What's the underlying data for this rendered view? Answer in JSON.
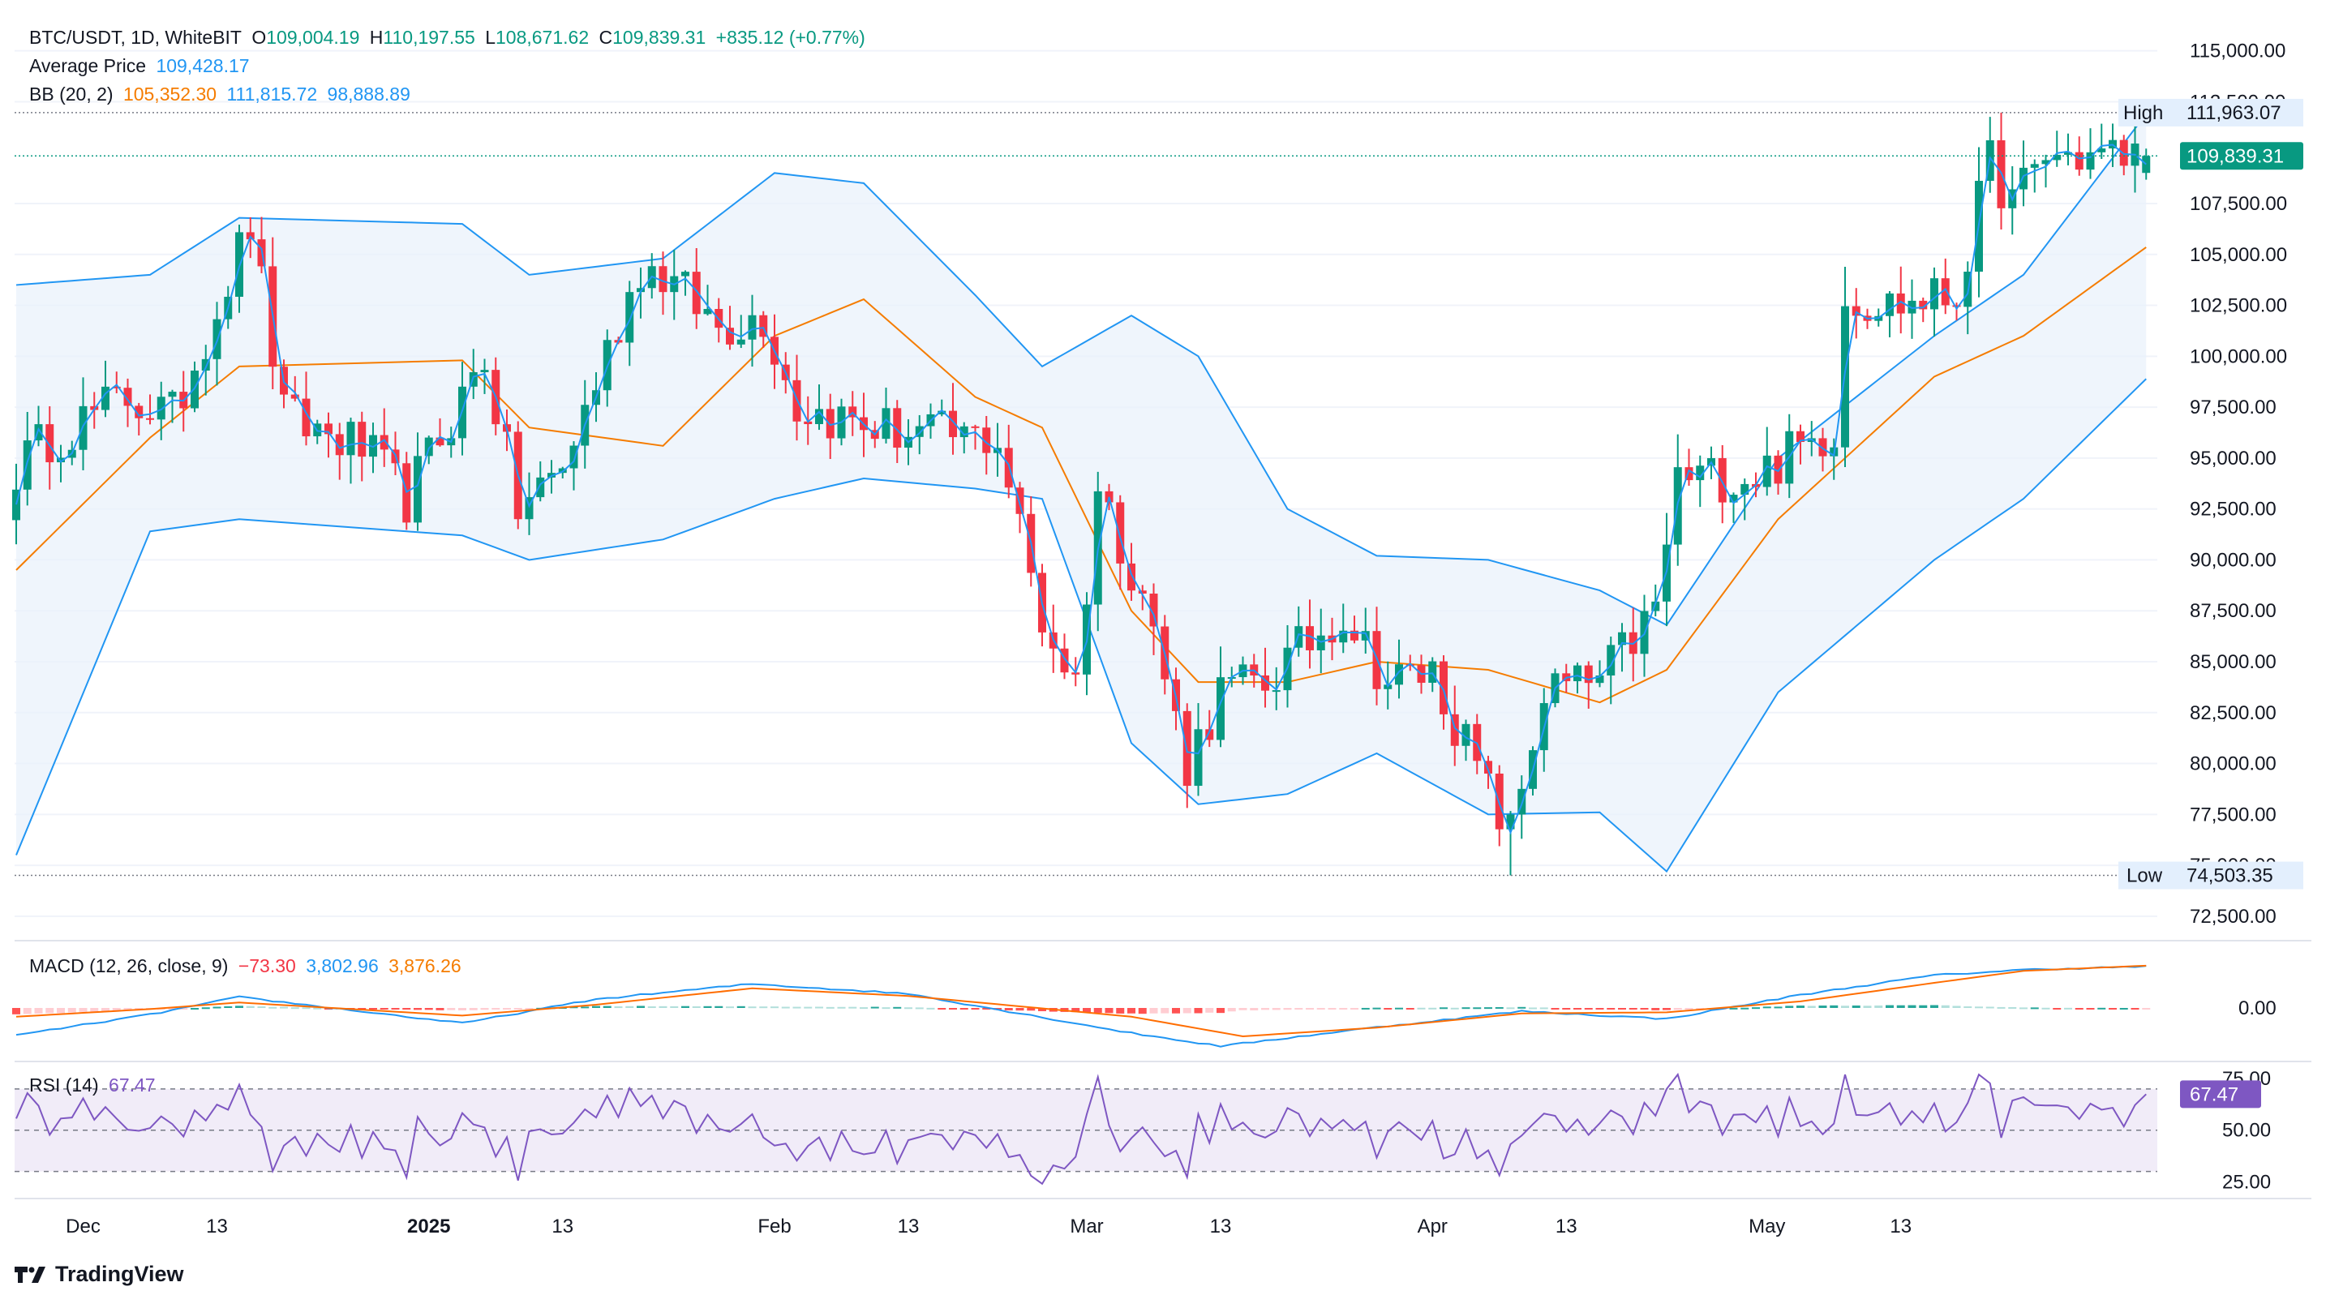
{
  "header": {
    "symbol": "BTC/USDT, 1D, WhiteBIT",
    "open_label": "O",
    "open": "109,004.19",
    "high_label": "H",
    "high": "110,197.55",
    "low_label": "L",
    "low": "108,671.62",
    "close_label": "C",
    "close": "109,839.31",
    "change": "+835.12 (+0.77%)",
    "avg_label": "Average Price",
    "avg": "109,428.17",
    "bb_label": "BB (20, 2)",
    "bb_basis": "105,352.30",
    "bb_upper": "111,815.72",
    "bb_lower": "98,888.89",
    "macd_label": "MACD (12, 26, close, 9)",
    "macd_hist": "−73.30",
    "macd": "3,802.96",
    "macd_signal": "3,876.26",
    "rsi_label": "RSI (14)",
    "rsi": "67.47"
  },
  "brand": "TradingView",
  "colors": {
    "up": "#089981",
    "down": "#f23645",
    "bb_line": "#2196f3",
    "bb_basis": "#f57c00",
    "bb_fill": "#e9f2fb",
    "macd_line": "#2196f3",
    "signal_line": "#ff6d00",
    "rsi_line": "#7e57c2",
    "rsi_band": "#ede7f6",
    "grid": "#f0f3fa",
    "axis_text": "#131722"
  },
  "chart_data": [
    {
      "type": "candlestick",
      "title": "BTC/USDT, 1D, WhiteBIT",
      "price_axis": [
        "115,000.00",
        "112,500.00",
        "107,500.00",
        "105,000.00",
        "102,500.00",
        "100,000.00",
        "97,500.00",
        "95,000.00",
        "92,500.00",
        "90,000.00",
        "87,500.00",
        "85,000.00",
        "82,500.00",
        "80,000.00",
        "77,500.00",
        "75,000.00",
        "72,500.00"
      ],
      "ylim": [
        71300,
        116500
      ],
      "x_labels": [
        "Dec",
        "13",
        "2025",
        "13",
        "Feb",
        "13",
        "Mar",
        "13",
        "Apr",
        "13",
        "May",
        "13"
      ],
      "date_range": [
        "2024-11-25",
        "2025-05-26"
      ],
      "high_marker": {
        "label": "High",
        "value": "111,963.07"
      },
      "low_marker": {
        "label": "Low",
        "value": "74,503.35"
      },
      "last_price": "109,839.31",
      "keyframes_close": [
        {
          "date": "2024-11-25",
          "close": 94500
        },
        {
          "date": "2024-11-28",
          "close": 96000
        },
        {
          "date": "2024-12-05",
          "close": 98000
        },
        {
          "date": "2024-12-09",
          "close": 97000
        },
        {
          "date": "2024-12-16",
          "close": 106500
        },
        {
          "date": "2024-12-19",
          "close": 97000
        },
        {
          "date": "2024-12-26",
          "close": 95500
        },
        {
          "date": "2024-12-30",
          "close": 93000
        },
        {
          "date": "2025-01-06",
          "close": 100000
        },
        {
          "date": "2025-01-09",
          "close": 92500
        },
        {
          "date": "2025-01-13",
          "close": 94500
        },
        {
          "date": "2025-01-20",
          "close": 104500
        },
        {
          "date": "2025-01-22",
          "close": 104000
        },
        {
          "date": "2025-01-27",
          "close": 101500
        },
        {
          "date": "2025-01-31",
          "close": 102000
        },
        {
          "date": "2025-02-03",
          "close": 97500
        },
        {
          "date": "2025-02-10",
          "close": 96500
        },
        {
          "date": "2025-02-17",
          "close": 96000
        },
        {
          "date": "2025-02-21",
          "close": 96000
        },
        {
          "date": "2025-02-25",
          "close": 87000
        },
        {
          "date": "2025-02-28",
          "close": 84000
        },
        {
          "date": "2025-03-02",
          "close": 93500
        },
        {
          "date": "2025-03-06",
          "close": 88500
        },
        {
          "date": "2025-03-10",
          "close": 80000
        },
        {
          "date": "2025-03-13",
          "close": 83500
        },
        {
          "date": "2025-03-17",
          "close": 84000
        },
        {
          "date": "2025-03-24",
          "close": 87500
        },
        {
          "date": "2025-03-28",
          "close": 84000
        },
        {
          "date": "2025-04-01",
          "close": 84500
        },
        {
          "date": "2025-04-06",
          "close": 78500
        },
        {
          "date": "2025-04-08",
          "close": 76500
        },
        {
          "date": "2025-04-11",
          "close": 83500
        },
        {
          "date": "2025-04-16",
          "close": 84000
        },
        {
          "date": "2025-04-21",
          "close": 87500
        },
        {
          "date": "2025-04-23",
          "close": 94000
        },
        {
          "date": "2025-04-30",
          "close": 94200
        },
        {
          "date": "2025-05-07",
          "close": 96500
        },
        {
          "date": "2025-05-08",
          "close": 103000
        },
        {
          "date": "2025-05-12",
          "close": 102500
        },
        {
          "date": "2025-05-18",
          "close": 103000
        },
        {
          "date": "2025-05-21",
          "close": 109500
        },
        {
          "date": "2025-05-23",
          "close": 107500
        },
        {
          "date": "2025-05-26",
          "close": 109839.31
        }
      ],
      "bollinger": {
        "upper": [
          [
            0,
            103500
          ],
          [
            12,
            104000
          ],
          [
            20,
            106800
          ],
          [
            40,
            106500
          ],
          [
            46,
            104000
          ],
          [
            58,
            104800
          ],
          [
            68,
            109000
          ],
          [
            76,
            108500
          ],
          [
            86,
            103000
          ],
          [
            92,
            99500
          ],
          [
            100,
            102000
          ],
          [
            106,
            100000
          ],
          [
            114,
            92500
          ],
          [
            122,
            90200
          ],
          [
            132,
            90000
          ],
          [
            142,
            88500
          ],
          [
            148,
            86800
          ],
          [
            158,
            95000
          ],
          [
            172,
            101000
          ],
          [
            180,
            104000
          ],
          [
            191,
            111900
          ]
        ],
        "basis": [
          [
            0,
            89500
          ],
          [
            12,
            96000
          ],
          [
            20,
            99500
          ],
          [
            40,
            99800
          ],
          [
            46,
            96500
          ],
          [
            58,
            95600
          ],
          [
            68,
            101000
          ],
          [
            76,
            102800
          ],
          [
            86,
            98000
          ],
          [
            92,
            96500
          ],
          [
            100,
            87500
          ],
          [
            106,
            84000
          ],
          [
            114,
            84000
          ],
          [
            122,
            85000
          ],
          [
            132,
            84600
          ],
          [
            142,
            83000
          ],
          [
            148,
            84600
          ],
          [
            158,
            92000
          ],
          [
            172,
            99000
          ],
          [
            180,
            101000
          ],
          [
            191,
            105352.3
          ]
        ],
        "lower": [
          [
            0,
            75500
          ],
          [
            12,
            91400
          ],
          [
            20,
            92000
          ],
          [
            40,
            91200
          ],
          [
            46,
            90000
          ],
          [
            58,
            91000
          ],
          [
            68,
            93000
          ],
          [
            76,
            94000
          ],
          [
            86,
            93500
          ],
          [
            92,
            93000
          ],
          [
            100,
            81000
          ],
          [
            106,
            78000
          ],
          [
            114,
            78500
          ],
          [
            122,
            80500
          ],
          [
            132,
            77500
          ],
          [
            142,
            77600
          ],
          [
            148,
            74700
          ],
          [
            158,
            83500
          ],
          [
            172,
            90000
          ],
          [
            180,
            93000
          ],
          [
            191,
            98888.89
          ]
        ]
      }
    },
    {
      "type": "line",
      "title": "MACD (12, 26, close, 9)",
      "y_axis": [
        "0.00"
      ],
      "ylim": [
        -5200,
        5200
      ],
      "macd_keyframes": [
        [
          0,
          -2500
        ],
        [
          12,
          -600
        ],
        [
          20,
          1000
        ],
        [
          40,
          -1400
        ],
        [
          52,
          800
        ],
        [
          66,
          2200
        ],
        [
          80,
          1300
        ],
        [
          100,
          -2300
        ],
        [
          108,
          -3500
        ],
        [
          120,
          -2000
        ],
        [
          135,
          -300
        ],
        [
          148,
          -1000
        ],
        [
          160,
          1200
        ],
        [
          172,
          3000
        ],
        [
          180,
          3500
        ],
        [
          191,
          3802.96
        ]
      ],
      "signal_keyframes": [
        [
          0,
          -800
        ],
        [
          12,
          -100
        ],
        [
          20,
          500
        ],
        [
          40,
          -700
        ],
        [
          52,
          300
        ],
        [
          66,
          1800
        ],
        [
          80,
          1100
        ],
        [
          100,
          -800
        ],
        [
          110,
          -2600
        ],
        [
          122,
          -1800
        ],
        [
          135,
          -500
        ],
        [
          148,
          -400
        ],
        [
          160,
          600
        ],
        [
          172,
          2300
        ],
        [
          180,
          3400
        ],
        [
          191,
          3876.26
        ]
      ]
    },
    {
      "type": "line",
      "title": "RSI (14)",
      "y_axis": [
        "75.00",
        "50.00",
        "25.00"
      ],
      "ylim": [
        20,
        79
      ],
      "bands": [
        70,
        50,
        30
      ],
      "last": "67.47"
    }
  ]
}
